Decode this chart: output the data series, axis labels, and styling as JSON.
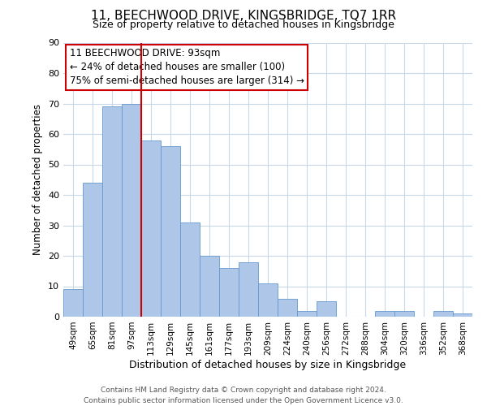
{
  "title": "11, BEECHWOOD DRIVE, KINGSBRIDGE, TQ7 1RR",
  "subtitle": "Size of property relative to detached houses in Kingsbridge",
  "xlabel": "Distribution of detached houses by size in Kingsbridge",
  "ylabel": "Number of detached properties",
  "categories": [
    "49sqm",
    "65sqm",
    "81sqm",
    "97sqm",
    "113sqm",
    "129sqm",
    "145sqm",
    "161sqm",
    "177sqm",
    "193sqm",
    "209sqm",
    "224sqm",
    "240sqm",
    "256sqm",
    "272sqm",
    "288sqm",
    "304sqm",
    "320sqm",
    "336sqm",
    "352sqm",
    "368sqm"
  ],
  "values": [
    9,
    44,
    69,
    70,
    58,
    56,
    31,
    20,
    16,
    18,
    11,
    6,
    2,
    5,
    0,
    0,
    2,
    2,
    0,
    2,
    1
  ],
  "bar_color": "#aec6e8",
  "bar_edge_color": "#6699cc",
  "vline_color": "#cc0000",
  "vline_pos": 3.5,
  "annotation_box_text": "11 BEECHWOOD DRIVE: 93sqm\n← 24% of detached houses are smaller (100)\n75% of semi-detached houses are larger (314) →",
  "box_edge_color": "#cc0000",
  "ylim": [
    0,
    90
  ],
  "yticks": [
    0,
    10,
    20,
    30,
    40,
    50,
    60,
    70,
    80,
    90
  ],
  "footer_line1": "Contains HM Land Registry data © Crown copyright and database right 2024.",
  "footer_line2": "Contains public sector information licensed under the Open Government Licence v3.0.",
  "background_color": "#ffffff",
  "grid_color": "#c8d8e8",
  "title_fontsize": 11,
  "subtitle_fontsize": 9,
  "ylabel_fontsize": 8.5,
  "xlabel_fontsize": 9,
  "tick_fontsize": 7.5,
  "annot_fontsize": 8.5,
  "footer_fontsize": 6.5
}
